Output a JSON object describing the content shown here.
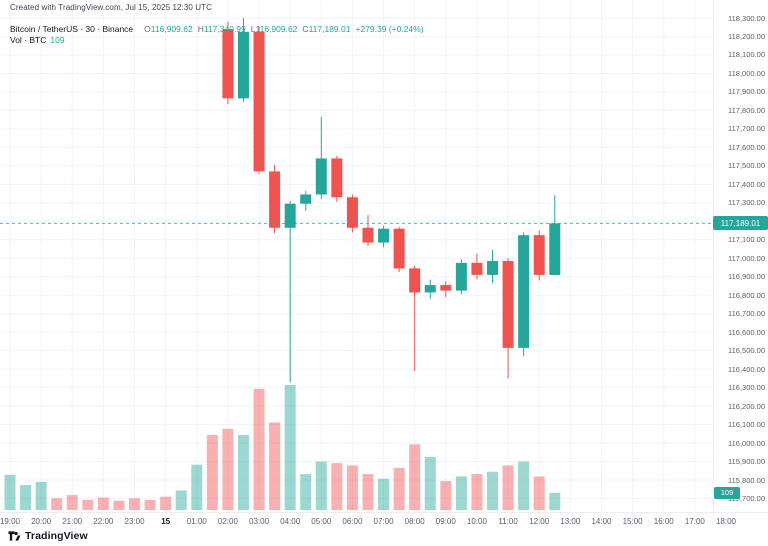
{
  "watermark": "Created with TradingView.com, Jul 15, 2025 12:30 UTC",
  "legend": {
    "title": "Bitcoin / TetherUS · 30 · Binance",
    "ohlc": [
      {
        "label": "O",
        "value": "116,909.62"
      },
      {
        "label": "H",
        "value": "117,340.99"
      },
      {
        "label": "L",
        "value": "116,909.62"
      },
      {
        "label": "C",
        "value": "117,189.01"
      }
    ],
    "change": "+279.39 (+0.24%)",
    "volume_title": "Vol · BTC",
    "volume_value": "109"
  },
  "footer": {
    "brand": "TradingView"
  },
  "colors": {
    "up": "#26a69a",
    "down": "#ef5350",
    "vol_up": "rgba(38,166,154,0.45)",
    "vol_down": "rgba(239,83,80,0.45)",
    "price_line": "#26a69a",
    "badge_bg": "#26a69a",
    "badge_text": "#ffffff",
    "grid": "#f0f3fa"
  },
  "chart_data": {
    "type": "candlestick",
    "title": "Bitcoin / TetherUS, 30 min, Binance",
    "current_price": 117189.01,
    "current_price_label": "117,189.01",
    "price_axis": {
      "min": 115600,
      "max": 118300,
      "step": 100,
      "labels": [
        "118,300.00",
        "118,200.00",
        "118,100.00",
        "118,000.00",
        "117,900.00",
        "117,800.00",
        "117,700.00",
        "117,600.00",
        "117,500.00",
        "117,400.00",
        "117,300.00",
        "117,200.00",
        "117,100.00",
        "117,000.00",
        "116,900.00",
        "116,800.00",
        "116,700.00",
        "116,600.00",
        "116,500.00",
        "116,400.00",
        "116,300.00",
        "116,200.00",
        "116,100.00",
        "116,000.00",
        "115,900.00",
        "115,800.00",
        "115,700.00",
        "115,600.00"
      ]
    },
    "time_axis": {
      "labels": [
        "19:00",
        "20:00",
        "21:00",
        "22:00",
        "23:00",
        "15",
        "01:00",
        "02:00",
        "03:00",
        "04:00",
        "05:00",
        "06:00",
        "07:00",
        "08:00",
        "09:00",
        "10:00",
        "11:00",
        "12:00",
        "13:00",
        "14:00",
        "15:00",
        "16:00",
        "17:00",
        "18:00"
      ],
      "date_label_index": 5,
      "start_time": "19:00",
      "slot_minutes": 30
    },
    "volume_axis": {
      "last_value_label": "109"
    },
    "candles": [
      {
        "time": "02:00",
        "open": 118240,
        "high": 118280,
        "low": 117835,
        "close": 117865,
        "volume": 520
      },
      {
        "time": "02:30",
        "open": 117865,
        "high": 118300,
        "low": 117845,
        "close": 118225,
        "volume": 480
      },
      {
        "time": "03:00",
        "open": 118225,
        "high": 118255,
        "low": 117455,
        "close": 117470,
        "volume": 775
      },
      {
        "time": "03:30",
        "open": 117470,
        "high": 117505,
        "low": 117135,
        "close": 117165,
        "volume": 560
      },
      {
        "time": "04:00",
        "open": 117165,
        "high": 117310,
        "low": 116330,
        "close": 117295,
        "volume": 800
      },
      {
        "time": "04:30",
        "open": 117295,
        "high": 117365,
        "low": 117255,
        "close": 117345,
        "volume": 230
      },
      {
        "time": "05:00",
        "open": 117345,
        "high": 117765,
        "low": 117320,
        "close": 117540,
        "volume": 310
      },
      {
        "time": "05:30",
        "open": 117540,
        "high": 117555,
        "low": 117305,
        "close": 117330,
        "volume": 300
      },
      {
        "time": "06:00",
        "open": 117330,
        "high": 117345,
        "low": 117140,
        "close": 117165,
        "volume": 285
      },
      {
        "time": "06:30",
        "open": 117165,
        "high": 117235,
        "low": 117065,
        "close": 117085,
        "volume": 230
      },
      {
        "time": "07:00",
        "open": 117085,
        "high": 117175,
        "low": 117060,
        "close": 117160,
        "volume": 200
      },
      {
        "time": "07:30",
        "open": 117160,
        "high": 117170,
        "low": 116925,
        "close": 116945,
        "volume": 270
      },
      {
        "time": "08:00",
        "open": 116945,
        "high": 116960,
        "low": 116390,
        "close": 116815,
        "volume": 420
      },
      {
        "time": "08:30",
        "open": 116815,
        "high": 116885,
        "low": 116780,
        "close": 116855,
        "volume": 340
      },
      {
        "time": "09:00",
        "open": 116855,
        "high": 116875,
        "low": 116790,
        "close": 116825,
        "volume": 185
      },
      {
        "time": "09:30",
        "open": 116825,
        "high": 116995,
        "low": 116805,
        "close": 116975,
        "volume": 215
      },
      {
        "time": "10:00",
        "open": 116975,
        "high": 117025,
        "low": 116885,
        "close": 116910,
        "volume": 230
      },
      {
        "time": "10:30",
        "open": 116910,
        "high": 117045,
        "low": 116865,
        "close": 116985,
        "volume": 245
      },
      {
        "time": "11:00",
        "open": 116985,
        "high": 117000,
        "low": 116350,
        "close": 116515,
        "volume": 285
      },
      {
        "time": "11:30",
        "open": 116515,
        "high": 117140,
        "low": 116470,
        "close": 117125,
        "volume": 310
      },
      {
        "time": "12:00",
        "open": 117125,
        "high": 117150,
        "low": 116880,
        "close": 116910,
        "volume": 215
      },
      {
        "time": "12:30",
        "open": 116909.62,
        "high": 117340.99,
        "low": 116909.62,
        "close": 117189.01,
        "volume": 109
      }
    ],
    "volume_only_bars": [
      {
        "time": "19:00",
        "volume": 225,
        "dir": "up"
      },
      {
        "time": "19:30",
        "volume": 160,
        "dir": "up"
      },
      {
        "time": "20:00",
        "volume": 180,
        "dir": "up"
      },
      {
        "time": "20:30",
        "volume": 75,
        "dir": "down"
      },
      {
        "time": "21:00",
        "volume": 95,
        "dir": "down"
      },
      {
        "time": "21:30",
        "volume": 65,
        "dir": "down"
      },
      {
        "time": "22:00",
        "volume": 80,
        "dir": "down"
      },
      {
        "time": "22:30",
        "volume": 60,
        "dir": "down"
      },
      {
        "time": "23:00",
        "volume": 75,
        "dir": "down"
      },
      {
        "time": "23:30",
        "volume": 65,
        "dir": "down"
      },
      {
        "time": "00:00",
        "volume": 85,
        "dir": "down"
      },
      {
        "time": "00:30",
        "volume": 125,
        "dir": "up"
      },
      {
        "time": "01:00",
        "volume": 290,
        "dir": "up"
      },
      {
        "time": "01:30",
        "volume": 480,
        "dir": "down"
      }
    ]
  }
}
